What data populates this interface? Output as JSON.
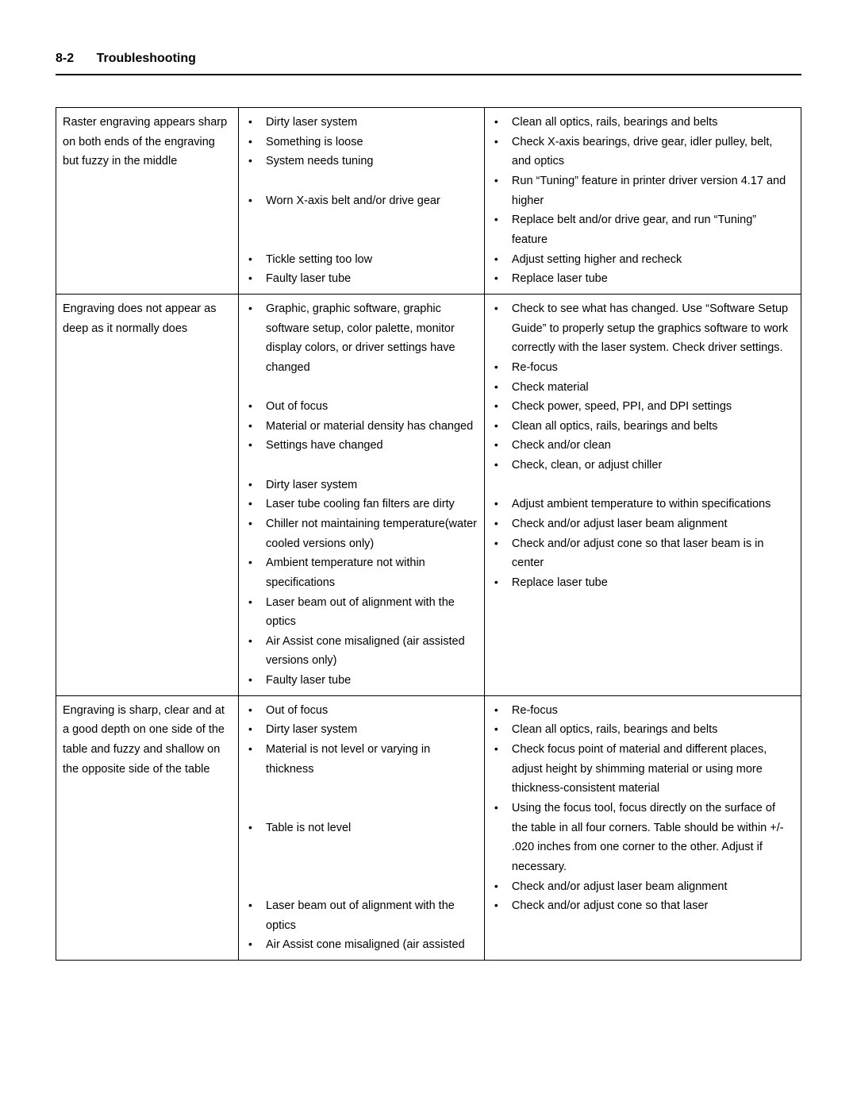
{
  "header": {
    "page_number": "8-2",
    "title": "Troubleshooting"
  },
  "rows": [
    {
      "problem": "Raster engraving appears sharp on both ends of the engraving but fuzzy in the middle",
      "causes": [
        "Dirty laser system",
        "Something is loose",
        "System needs tuning",
        "",
        "Worn X-axis belt and/or drive gear",
        "",
        "",
        "Tickle setting too low",
        "Faulty laser tube"
      ],
      "fixes": [
        "Clean all optics, rails, bearings and belts",
        "Check X-axis bearings, drive gear, idler pulley, belt, and optics",
        "Run “Tuning” feature in printer driver version 4.17 and higher",
        "Replace belt and/or drive gear, and run “Tuning” feature",
        "Adjust setting higher and recheck",
        "Replace laser tube"
      ]
    },
    {
      "problem": "Engraving does not appear as deep as it normally does",
      "causes": [
        "Graphic, graphic software, graphic software setup, color palette, monitor display colors, or driver settings have changed",
        "",
        "Out of focus",
        "Material or material density has changed",
        "Settings have changed",
        "",
        "Dirty laser system",
        "Laser tube cooling fan filters are dirty",
        "Chiller not maintaining temperature(water cooled versions only)",
        "Ambient temperature not within specifications",
        "Laser beam out of alignment with the optics",
        "Air Assist cone misaligned (air assisted versions only)",
        "Faulty laser tube"
      ],
      "fixes": [
        "Check to see what has changed. Use “Software Setup Guide” to properly setup the graphics software to work correctly with the laser system. Check driver settings.",
        "Re-focus",
        "Check material",
        "Check power, speed, PPI, and DPI settings",
        "Clean all optics, rails, bearings and belts",
        "Check and/or clean",
        "Check, clean, or adjust chiller",
        "",
        "Adjust ambient temperature to within specifications",
        "Check and/or adjust laser beam alignment",
        "Check and/or adjust cone so that laser beam is in center",
        "Replace laser tube"
      ]
    },
    {
      "problem": "Engraving is sharp, clear and at a good depth on one side of the table and fuzzy and shallow on the opposite side of the table",
      "causes": [
        "Out of focus",
        "Dirty laser system",
        "Material is not level or varying in thickness",
        "",
        "",
        "Table is not level",
        "",
        "",
        "",
        "Laser beam out of alignment with the optics",
        "Air Assist cone misaligned (air assisted"
      ],
      "fixes": [
        "Re-focus",
        "Clean all optics, rails, bearings and belts",
        "Check focus point of material and different places, adjust height by shimming material or using more thickness-consistent material",
        "Using the focus tool, focus directly on the surface of the table in all four corners. Table should be within +/- .020 inches from one corner to the other. Adjust if necessary.",
        "Check and/or adjust laser beam alignment",
        "Check and/or adjust cone so that laser"
      ]
    }
  ]
}
